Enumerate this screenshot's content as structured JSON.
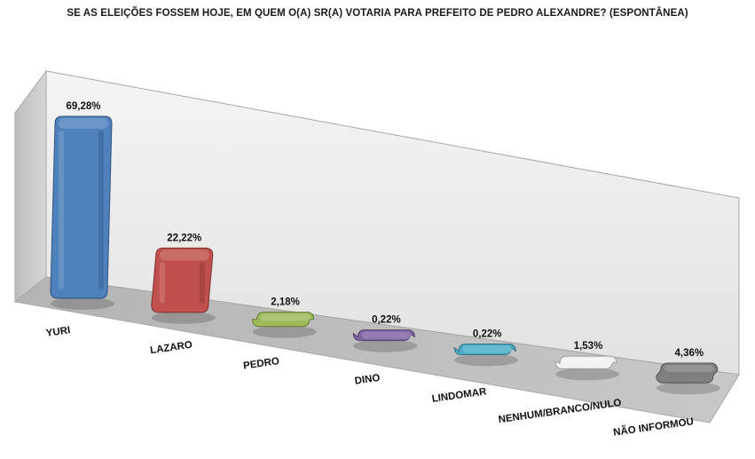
{
  "chart_data": {
    "type": "bar",
    "title": "SE AS ELEIÇÕES FOSSEM HOJE, EM QUEM O(A) SR(A) VOTARIA PARA PREFEITO DE PEDRO ALEXANDRE? (ESPONTÂNEA)",
    "categories": [
      "YURI",
      "LAZARO",
      "PEDRO",
      "DINO",
      "LINDOMAR",
      "NENHUM/BRANCO/NULO",
      "NÃO INFORMOU"
    ],
    "values": [
      69.28,
      22.22,
      2.18,
      0.22,
      0.22,
      1.53,
      4.36
    ],
    "data_labels": [
      "69,28%",
      "22,22%",
      "2,18%",
      "0,22%",
      "0,22%",
      "1,53%",
      "4,36%"
    ],
    "colors": [
      "#4f81bd",
      "#c0504d",
      "#9bbb59",
      "#8064a2",
      "#4bacc6",
      "#f2f2f2",
      "#7f7f7f"
    ],
    "ylim": [
      0,
      80
    ],
    "grid": false,
    "legend": "none",
    "style": "3d-rounded-bars"
  }
}
